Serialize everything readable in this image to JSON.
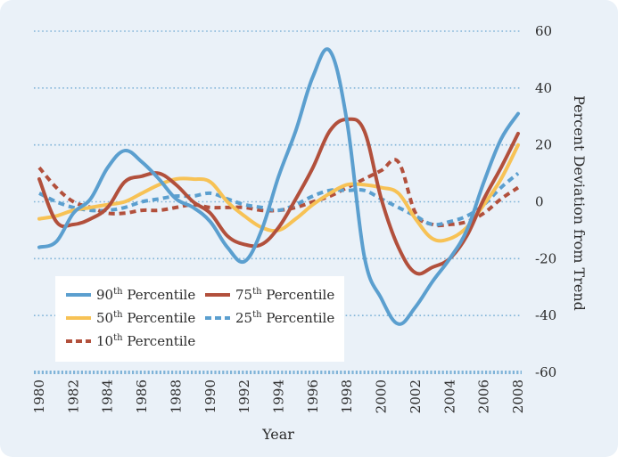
{
  "chart_data": {
    "type": "line",
    "title": "",
    "xlabel": "Year",
    "ylabel": "Percent Deviation from Trend",
    "xlim": [
      1980,
      2008
    ],
    "ylim": [
      -60,
      60
    ],
    "x_ticks": [
      1980,
      1982,
      1984,
      1986,
      1988,
      1990,
      1992,
      1994,
      1996,
      1998,
      2000,
      2002,
      2004,
      2006,
      2008
    ],
    "y_ticks": [
      60,
      40,
      20,
      0,
      -20,
      -40,
      -60
    ],
    "x": [
      1980,
      1981,
      1982,
      1983,
      1984,
      1985,
      1986,
      1987,
      1988,
      1989,
      1990,
      1991,
      1992,
      1993,
      1994,
      1995,
      1996,
      1997,
      1998,
      1999,
      2000,
      2001,
      2002,
      2003,
      2004,
      2005,
      2006,
      2007,
      2008
    ],
    "series": [
      {
        "name": "90th Percentile",
        "sup_base": "90",
        "sup": "th",
        "sup_rest": " Percentile",
        "color": "#5b9fcf",
        "dash": false,
        "values": [
          -16,
          -14,
          -4,
          1,
          12,
          18,
          14,
          8,
          1,
          -2,
          -7,
          -16,
          -21,
          -10,
          9,
          25,
          44,
          53,
          28,
          -19,
          -34,
          -43,
          -37,
          -28,
          -20,
          -10,
          7,
          22,
          31
        ]
      },
      {
        "name": "75th Percentile",
        "sup_base": "75",
        "sup": "th",
        "sup_rest": " Percentile",
        "color": "#b2503c",
        "dash": false,
        "values": [
          8,
          -7,
          -8,
          -6,
          -2,
          7,
          9,
          10,
          6,
          0,
          -4,
          -12,
          -15,
          -15,
          -9,
          1,
          12,
          25,
          29,
          25,
          1,
          -16,
          -25,
          -23,
          -20,
          -12,
          1,
          12,
          24
        ]
      },
      {
        "name": "50th Percentile",
        "sup_base": "50",
        "sup": "th",
        "sup_rest": " Percentile",
        "color": "#f7c255",
        "dash": false,
        "values": [
          -6,
          -5,
          -3,
          -2,
          -1,
          0,
          3,
          6,
          8,
          8,
          7,
          0,
          -5,
          -9,
          -10,
          -6,
          -1,
          3,
          6,
          6,
          5,
          3,
          -6,
          -13,
          -13,
          -9,
          -1,
          8,
          20
        ]
      },
      {
        "name": "25th Percentile",
        "sup_base": "25",
        "sup": "th",
        "sup_rest": " Percentile",
        "color": "#5b9fcf",
        "dash": true,
        "values": [
          3,
          0,
          -2,
          -3,
          -3,
          -2,
          0,
          1,
          2,
          2,
          3,
          1,
          -1,
          -2,
          -3,
          -1,
          2,
          4,
          4,
          4,
          1,
          -2,
          -5,
          -8,
          -7,
          -5,
          -1,
          5,
          10
        ]
      },
      {
        "name": "10th Percentile",
        "sup_base": "10",
        "sup": "th",
        "sup_rest": " Percentile",
        "color": "#b2503c",
        "dash": true,
        "values": [
          12,
          5,
          0,
          -2,
          -4,
          -4,
          -3,
          -3,
          -2,
          -1,
          -2,
          -2,
          -2,
          -3,
          -3,
          -2,
          0,
          2,
          5,
          8,
          11,
          14,
          -4,
          -8,
          -8,
          -7,
          -4,
          1,
          5
        ]
      }
    ],
    "legend": "bottom-left",
    "grid": true
  }
}
